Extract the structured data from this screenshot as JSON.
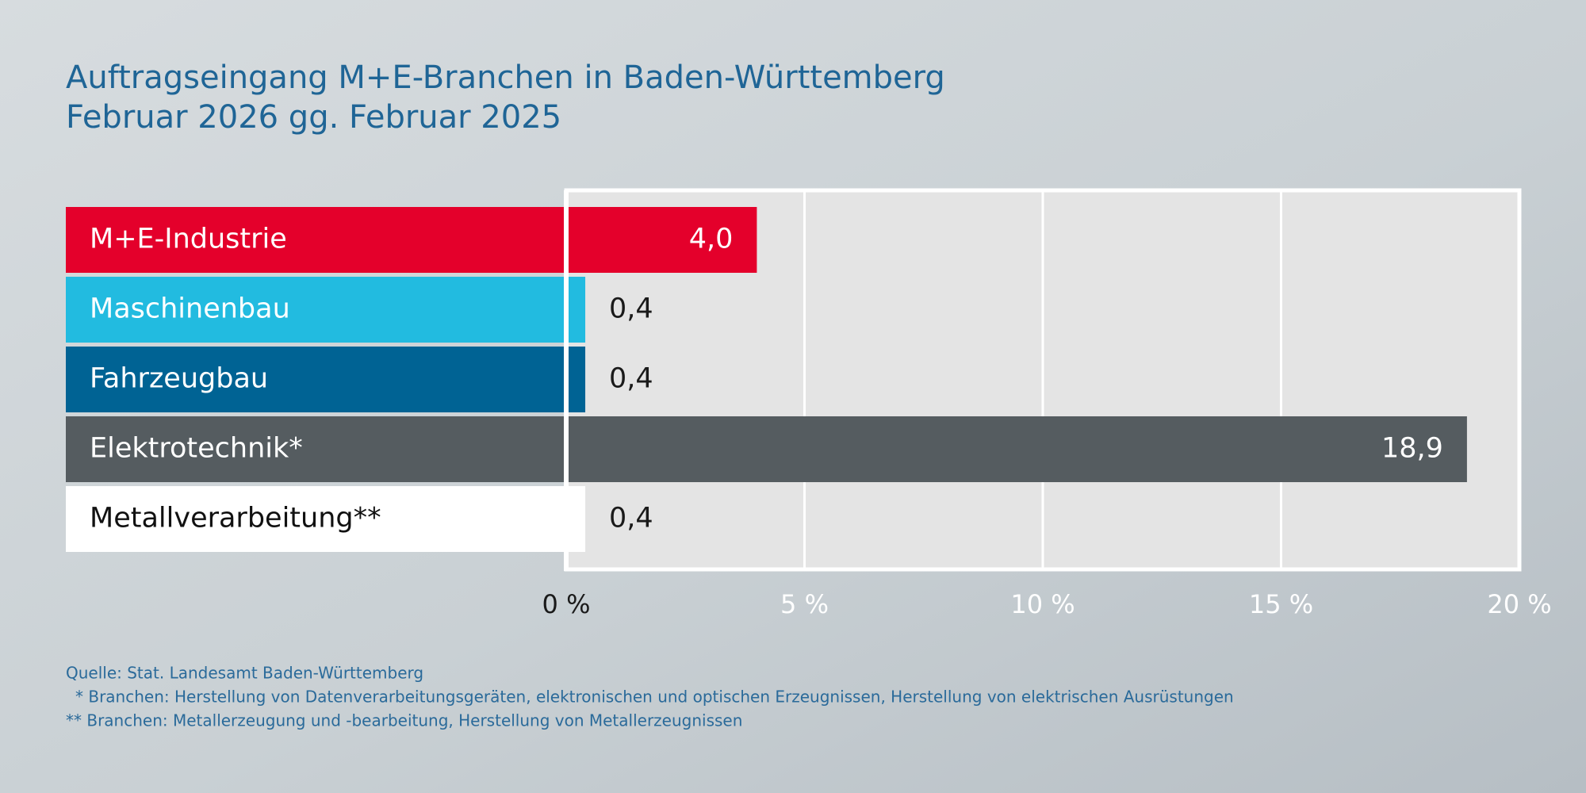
{
  "chart_data": {
    "type": "bar",
    "orientation": "horizontal",
    "title": "Auftragseingang M+E-Branchen in Baden-Württemberg",
    "subtitle": "Februar 2026 gg. Februar 2025",
    "categories": [
      "M+E-Industrie",
      "Maschinenbau",
      "Fahrzeugbau",
      "Elektrotechnik*",
      "Metallverarbeitung**"
    ],
    "values": [
      4.0,
      0.4,
      0.4,
      18.9,
      0.4
    ],
    "value_labels": [
      "4,0",
      "0,4",
      "0,4",
      "18,9",
      "0,4"
    ],
    "colors": [
      "#e4002b",
      "#22bbe0",
      "#006394",
      "#555c60",
      "#ffffff"
    ],
    "xlim": [
      0,
      20
    ],
    "xticks": [
      {
        "value": 0,
        "label": "0 %"
      },
      {
        "value": 5,
        "label": "5 %"
      },
      {
        "value": 10,
        "label": "10 %"
      },
      {
        "value": 15,
        "label": "15 %"
      },
      {
        "value": 20,
        "label": "20 %"
      }
    ],
    "grid": true,
    "source": "Quelle: Stat. Landesamt Baden-Württemberg",
    "notes": [
      "* Branchen: Herstellung von Datenverarbeitungsgeräten, elektronischen und optischen Erzeugnissen, Herstellung von elektrischen Ausrüstungen",
      "** Branchen: Metallerzeugung und -bearbeitung, Herstellung von Metallerzeugnissen"
    ]
  }
}
